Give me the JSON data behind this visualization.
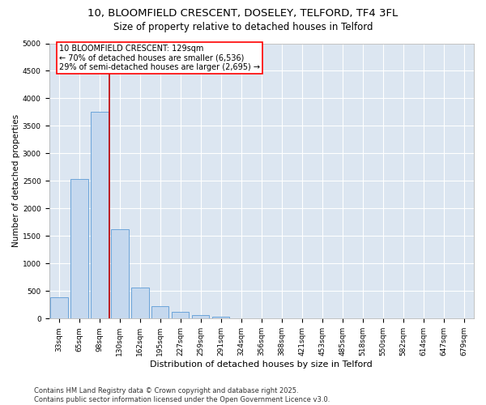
{
  "title_line1": "10, BLOOMFIELD CRESCENT, DOSELEY, TELFORD, TF4 3FL",
  "title_line2": "Size of property relative to detached houses in Telford",
  "xlabel": "Distribution of detached houses by size in Telford",
  "ylabel": "Number of detached properties",
  "categories": [
    "33sqm",
    "65sqm",
    "98sqm",
    "130sqm",
    "162sqm",
    "195sqm",
    "227sqm",
    "259sqm",
    "291sqm",
    "324sqm",
    "356sqm",
    "388sqm",
    "421sqm",
    "453sqm",
    "485sqm",
    "518sqm",
    "550sqm",
    "582sqm",
    "614sqm",
    "647sqm",
    "679sqm"
  ],
  "values": [
    390,
    2530,
    3750,
    1620,
    560,
    230,
    130,
    60,
    30,
    0,
    0,
    0,
    0,
    0,
    0,
    0,
    0,
    0,
    0,
    0,
    0
  ],
  "bar_color": "#c5d8ee",
  "bar_edge_color": "#5b9bd5",
  "vline_index": 3,
  "vline_color": "#c00000",
  "annotation_text": "10 BLOOMFIELD CRESCENT: 129sqm\n← 70% of detached houses are smaller (6,536)\n29% of semi-detached houses are larger (2,695) →",
  "annotation_box_color": "white",
  "annotation_box_edge_color": "red",
  "ylim": [
    0,
    5000
  ],
  "yticks": [
    0,
    500,
    1000,
    1500,
    2000,
    2500,
    3000,
    3500,
    4000,
    4500,
    5000
  ],
  "background_color": "#dce6f1",
  "grid_color": "white",
  "footer_line1": "Contains HM Land Registry data © Crown copyright and database right 2025.",
  "footer_line2": "Contains public sector information licensed under the Open Government Licence v3.0.",
  "title_fontsize": 9.5,
  "subtitle_fontsize": 8.5,
  "axis_label_fontsize": 7.5,
  "tick_fontsize": 6.5,
  "annotation_fontsize": 7,
  "footer_fontsize": 6
}
